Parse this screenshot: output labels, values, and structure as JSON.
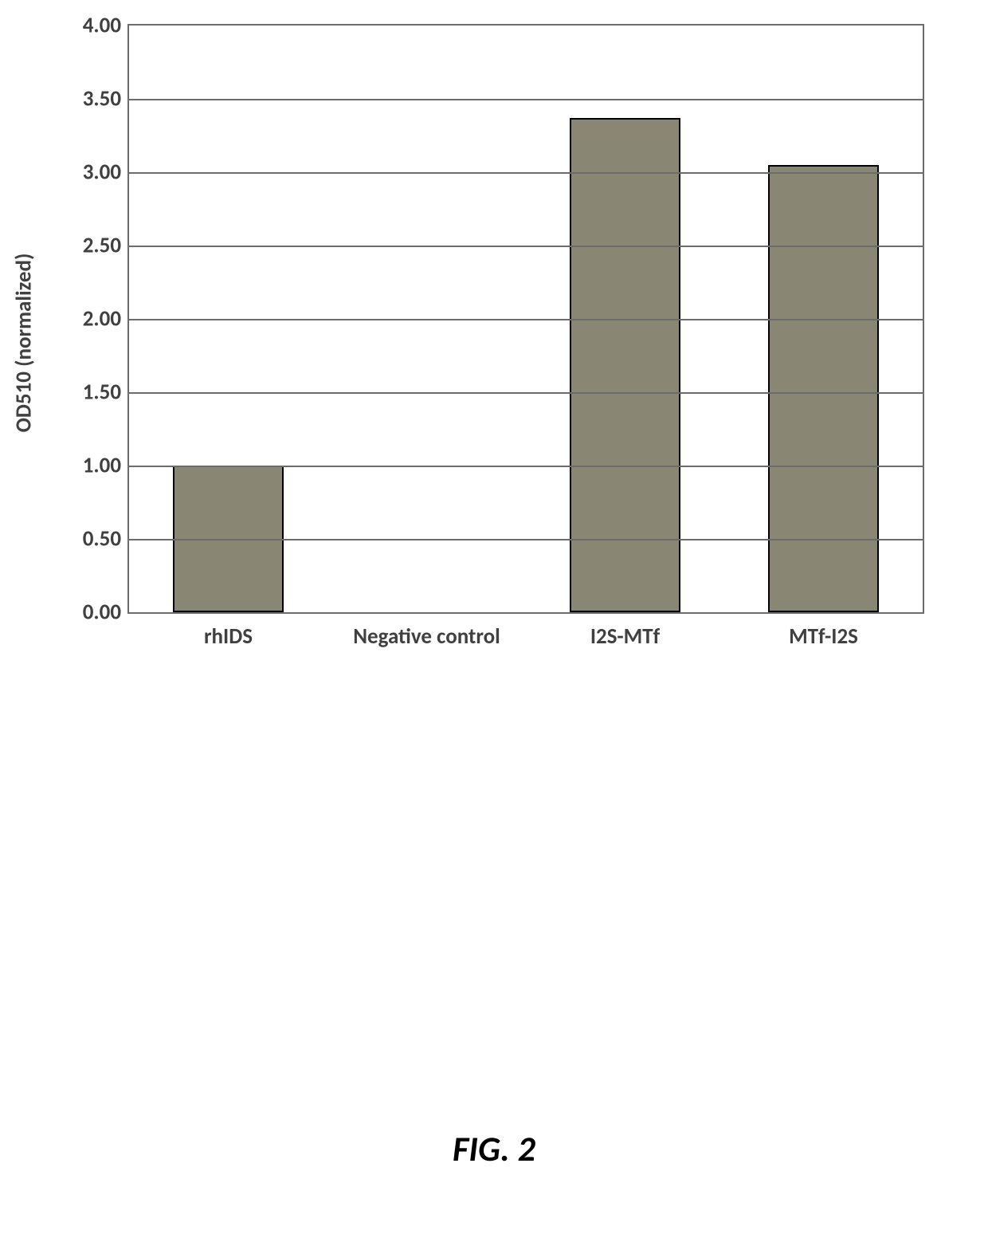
{
  "chart": {
    "type": "bar",
    "ylabel": "OD510 (normalized)",
    "ylabel_fontsize": 27,
    "ylim": [
      0.0,
      4.0
    ],
    "ytick_step": 0.5,
    "yticks": [
      "0.00",
      "0.50",
      "1.00",
      "1.50",
      "2.00",
      "2.50",
      "3.00",
      "3.50",
      "4.00"
    ],
    "tick_fontsize": 27,
    "categories": [
      "rhIDS",
      "Negative control",
      "I2S-MTf",
      "MTf-I2S"
    ],
    "xtick_fontsize": 27,
    "values": [
      1.0,
      0.0,
      3.37,
      3.05
    ],
    "bar_color": "#8a8674",
    "bar_border_color": "#000000",
    "bar_width_pct": 56,
    "background_color": "#ffffff",
    "grid_color": "#6b6b6b",
    "axis_color": "#6b6b6b"
  },
  "caption": {
    "text": "FIG. 2",
    "fontsize": 44
  }
}
